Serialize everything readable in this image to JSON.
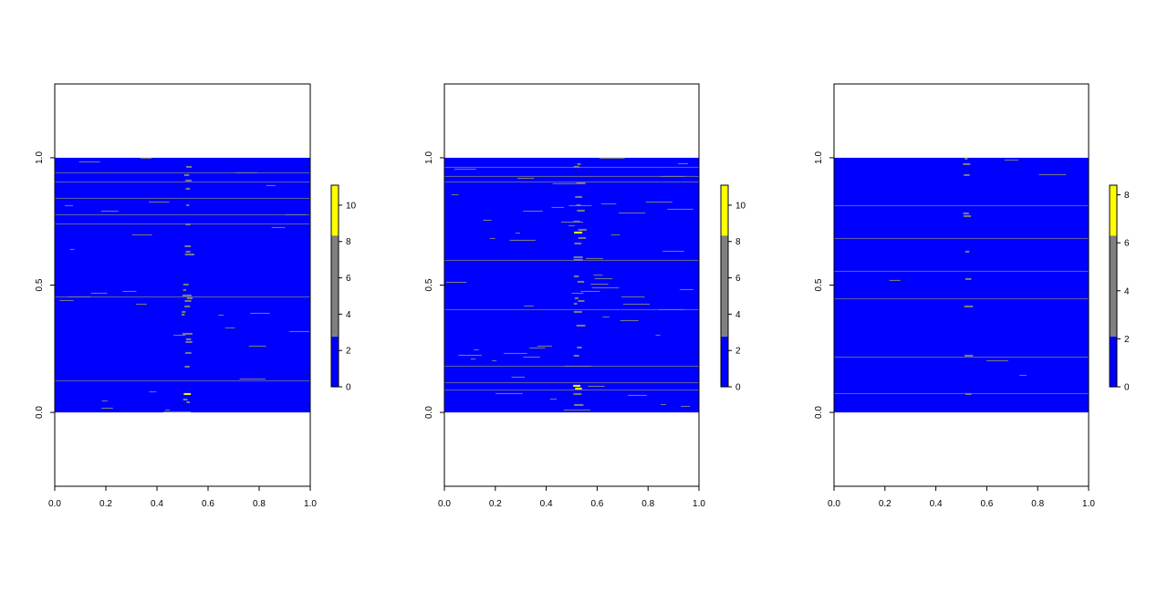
{
  "colors": {
    "blue": "#0000ff",
    "gray": "#808080",
    "yellow": "#ffff00",
    "frame": "#000000",
    "background": "#ffffff"
  },
  "chart_data": [
    {
      "type": "heatmap",
      "title": "",
      "xlabel": "",
      "ylabel": "",
      "xlim": [
        0,
        1
      ],
      "ylim": [
        -0.29,
        1.29
      ],
      "data_extent": {
        "x": [
          0,
          1
        ],
        "y": [
          0,
          1
        ]
      },
      "x_ticks": [
        "0.0",
        "0.2",
        "0.4",
        "0.6",
        "0.8",
        "1.0"
      ],
      "y_ticks": [
        "0.0",
        "0.5",
        "1.0"
      ],
      "color_breaks": [
        0,
        2.77,
        8.33,
        11.1
      ],
      "color_classes": [
        "blue",
        "gray",
        "yellow"
      ],
      "colorbar_ticks": [
        "0",
        "2",
        "4",
        "6",
        "8",
        "10"
      ],
      "grid": false,
      "legend": "right"
    },
    {
      "type": "heatmap",
      "title": "",
      "xlabel": "",
      "ylabel": "",
      "xlim": [
        0,
        1
      ],
      "ylim": [
        -0.29,
        1.29
      ],
      "data_extent": {
        "x": [
          0,
          1
        ],
        "y": [
          0,
          1
        ]
      },
      "x_ticks": [
        "0.0",
        "0.2",
        "0.4",
        "0.6",
        "0.8",
        "1.0"
      ],
      "y_ticks": [
        "0.0",
        "0.5",
        "1.0"
      ],
      "color_breaks": [
        0,
        2.77,
        8.33,
        11.1
      ],
      "color_classes": [
        "blue",
        "gray",
        "yellow"
      ],
      "colorbar_ticks": [
        "0",
        "2",
        "4",
        "6",
        "8",
        "10"
      ],
      "grid": false,
      "legend": "right"
    },
    {
      "type": "heatmap",
      "title": "",
      "xlabel": "",
      "ylabel": "",
      "xlim": [
        0,
        1
      ],
      "ylim": [
        -0.29,
        1.29
      ],
      "data_extent": {
        "x": [
          0,
          1
        ],
        "y": [
          0,
          1
        ]
      },
      "x_ticks": [
        "0.0",
        "0.2",
        "0.4",
        "0.6",
        "0.8",
        "1.0"
      ],
      "y_ticks": [
        "0.0",
        "0.5",
        "1.0"
      ],
      "color_breaks": [
        0,
        2.1,
        6.3,
        8.4
      ],
      "color_classes": [
        "blue",
        "gray",
        "yellow"
      ],
      "colorbar_ticks": [
        "0",
        "2",
        "4",
        "6",
        "8"
      ],
      "grid": false,
      "legend": "right"
    }
  ]
}
